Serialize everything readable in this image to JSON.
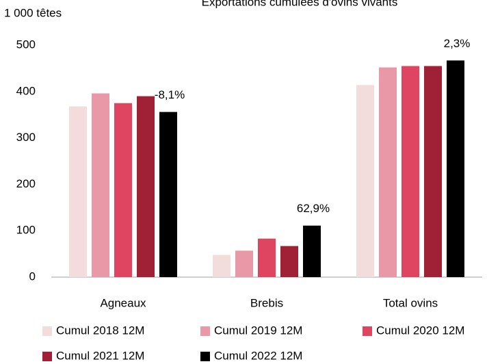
{
  "chart_data": {
    "type": "bar",
    "title": "Exportations cumulées d'ovins vivants",
    "y_label": "1 000 têtes",
    "categories": [
      "Agneaux",
      "Brebis",
      "Total ovins"
    ],
    "series": [
      {
        "name": "Cumul 2018 12M",
        "color": "#f2dcdc",
        "values": [
          368,
          48,
          414
        ]
      },
      {
        "name": "Cumul 2019 12M",
        "color": "#e898a6",
        "values": [
          396,
          57,
          452
        ]
      },
      {
        "name": "Cumul 2020 12M",
        "color": "#df4560",
        "values": [
          375,
          83,
          455
        ]
      },
      {
        "name": "Cumul 2021 12M",
        "color": "#a02035",
        "values": [
          390,
          67,
          455
        ]
      },
      {
        "name": "Cumul 2022 12M",
        "color": "#000000",
        "values": [
          356,
          111,
          467
        ]
      }
    ],
    "annotations": [
      "-8,1%",
      "62,9%",
      "2,3%"
    ],
    "ylim": [
      0,
      500
    ],
    "yticks": [
      0,
      100,
      200,
      300,
      400,
      500
    ],
    "grid": false
  }
}
